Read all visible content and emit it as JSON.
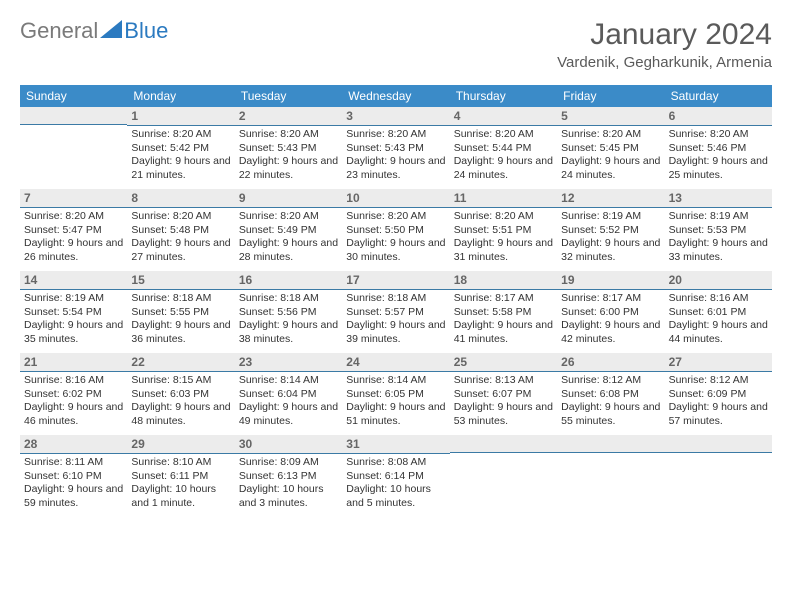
{
  "logo": {
    "text1": "General",
    "text2": "Blue"
  },
  "title": "January 2024",
  "location": "Vardenik, Gegharkunik, Armenia",
  "days_of_week": [
    "Sunday",
    "Monday",
    "Tuesday",
    "Wednesday",
    "Thursday",
    "Friday",
    "Saturday"
  ],
  "colors": {
    "header_bg": "#3b8bc8",
    "header_text": "#ffffff",
    "daynum_bg": "#ececec",
    "daynum_border": "#3b7aa5",
    "text": "#333333",
    "title_color": "#5a5a5a",
    "logo_gray": "#7a7a7a",
    "logo_blue": "#2b7ac0"
  },
  "weeks": [
    [
      {
        "n": "",
        "sr": "",
        "ss": "",
        "dl": ""
      },
      {
        "n": "1",
        "sr": "Sunrise: 8:20 AM",
        "ss": "Sunset: 5:42 PM",
        "dl": "Daylight: 9 hours and 21 minutes."
      },
      {
        "n": "2",
        "sr": "Sunrise: 8:20 AM",
        "ss": "Sunset: 5:43 PM",
        "dl": "Daylight: 9 hours and 22 minutes."
      },
      {
        "n": "3",
        "sr": "Sunrise: 8:20 AM",
        "ss": "Sunset: 5:43 PM",
        "dl": "Daylight: 9 hours and 23 minutes."
      },
      {
        "n": "4",
        "sr": "Sunrise: 8:20 AM",
        "ss": "Sunset: 5:44 PM",
        "dl": "Daylight: 9 hours and 24 minutes."
      },
      {
        "n": "5",
        "sr": "Sunrise: 8:20 AM",
        "ss": "Sunset: 5:45 PM",
        "dl": "Daylight: 9 hours and 24 minutes."
      },
      {
        "n": "6",
        "sr": "Sunrise: 8:20 AM",
        "ss": "Sunset: 5:46 PM",
        "dl": "Daylight: 9 hours and 25 minutes."
      }
    ],
    [
      {
        "n": "7",
        "sr": "Sunrise: 8:20 AM",
        "ss": "Sunset: 5:47 PM",
        "dl": "Daylight: 9 hours and 26 minutes."
      },
      {
        "n": "8",
        "sr": "Sunrise: 8:20 AM",
        "ss": "Sunset: 5:48 PM",
        "dl": "Daylight: 9 hours and 27 minutes."
      },
      {
        "n": "9",
        "sr": "Sunrise: 8:20 AM",
        "ss": "Sunset: 5:49 PM",
        "dl": "Daylight: 9 hours and 28 minutes."
      },
      {
        "n": "10",
        "sr": "Sunrise: 8:20 AM",
        "ss": "Sunset: 5:50 PM",
        "dl": "Daylight: 9 hours and 30 minutes."
      },
      {
        "n": "11",
        "sr": "Sunrise: 8:20 AM",
        "ss": "Sunset: 5:51 PM",
        "dl": "Daylight: 9 hours and 31 minutes."
      },
      {
        "n": "12",
        "sr": "Sunrise: 8:19 AM",
        "ss": "Sunset: 5:52 PM",
        "dl": "Daylight: 9 hours and 32 minutes."
      },
      {
        "n": "13",
        "sr": "Sunrise: 8:19 AM",
        "ss": "Sunset: 5:53 PM",
        "dl": "Daylight: 9 hours and 33 minutes."
      }
    ],
    [
      {
        "n": "14",
        "sr": "Sunrise: 8:19 AM",
        "ss": "Sunset: 5:54 PM",
        "dl": "Daylight: 9 hours and 35 minutes."
      },
      {
        "n": "15",
        "sr": "Sunrise: 8:18 AM",
        "ss": "Sunset: 5:55 PM",
        "dl": "Daylight: 9 hours and 36 minutes."
      },
      {
        "n": "16",
        "sr": "Sunrise: 8:18 AM",
        "ss": "Sunset: 5:56 PM",
        "dl": "Daylight: 9 hours and 38 minutes."
      },
      {
        "n": "17",
        "sr": "Sunrise: 8:18 AM",
        "ss": "Sunset: 5:57 PM",
        "dl": "Daylight: 9 hours and 39 minutes."
      },
      {
        "n": "18",
        "sr": "Sunrise: 8:17 AM",
        "ss": "Sunset: 5:58 PM",
        "dl": "Daylight: 9 hours and 41 minutes."
      },
      {
        "n": "19",
        "sr": "Sunrise: 8:17 AM",
        "ss": "Sunset: 6:00 PM",
        "dl": "Daylight: 9 hours and 42 minutes."
      },
      {
        "n": "20",
        "sr": "Sunrise: 8:16 AM",
        "ss": "Sunset: 6:01 PM",
        "dl": "Daylight: 9 hours and 44 minutes."
      }
    ],
    [
      {
        "n": "21",
        "sr": "Sunrise: 8:16 AM",
        "ss": "Sunset: 6:02 PM",
        "dl": "Daylight: 9 hours and 46 minutes."
      },
      {
        "n": "22",
        "sr": "Sunrise: 8:15 AM",
        "ss": "Sunset: 6:03 PM",
        "dl": "Daylight: 9 hours and 48 minutes."
      },
      {
        "n": "23",
        "sr": "Sunrise: 8:14 AM",
        "ss": "Sunset: 6:04 PM",
        "dl": "Daylight: 9 hours and 49 minutes."
      },
      {
        "n": "24",
        "sr": "Sunrise: 8:14 AM",
        "ss": "Sunset: 6:05 PM",
        "dl": "Daylight: 9 hours and 51 minutes."
      },
      {
        "n": "25",
        "sr": "Sunrise: 8:13 AM",
        "ss": "Sunset: 6:07 PM",
        "dl": "Daylight: 9 hours and 53 minutes."
      },
      {
        "n": "26",
        "sr": "Sunrise: 8:12 AM",
        "ss": "Sunset: 6:08 PM",
        "dl": "Daylight: 9 hours and 55 minutes."
      },
      {
        "n": "27",
        "sr": "Sunrise: 8:12 AM",
        "ss": "Sunset: 6:09 PM",
        "dl": "Daylight: 9 hours and 57 minutes."
      }
    ],
    [
      {
        "n": "28",
        "sr": "Sunrise: 8:11 AM",
        "ss": "Sunset: 6:10 PM",
        "dl": "Daylight: 9 hours and 59 minutes."
      },
      {
        "n": "29",
        "sr": "Sunrise: 8:10 AM",
        "ss": "Sunset: 6:11 PM",
        "dl": "Daylight: 10 hours and 1 minute."
      },
      {
        "n": "30",
        "sr": "Sunrise: 8:09 AM",
        "ss": "Sunset: 6:13 PM",
        "dl": "Daylight: 10 hours and 3 minutes."
      },
      {
        "n": "31",
        "sr": "Sunrise: 8:08 AM",
        "ss": "Sunset: 6:14 PM",
        "dl": "Daylight: 10 hours and 5 minutes."
      },
      {
        "n": "",
        "sr": "",
        "ss": "",
        "dl": ""
      },
      {
        "n": "",
        "sr": "",
        "ss": "",
        "dl": ""
      },
      {
        "n": "",
        "sr": "",
        "ss": "",
        "dl": ""
      }
    ]
  ]
}
